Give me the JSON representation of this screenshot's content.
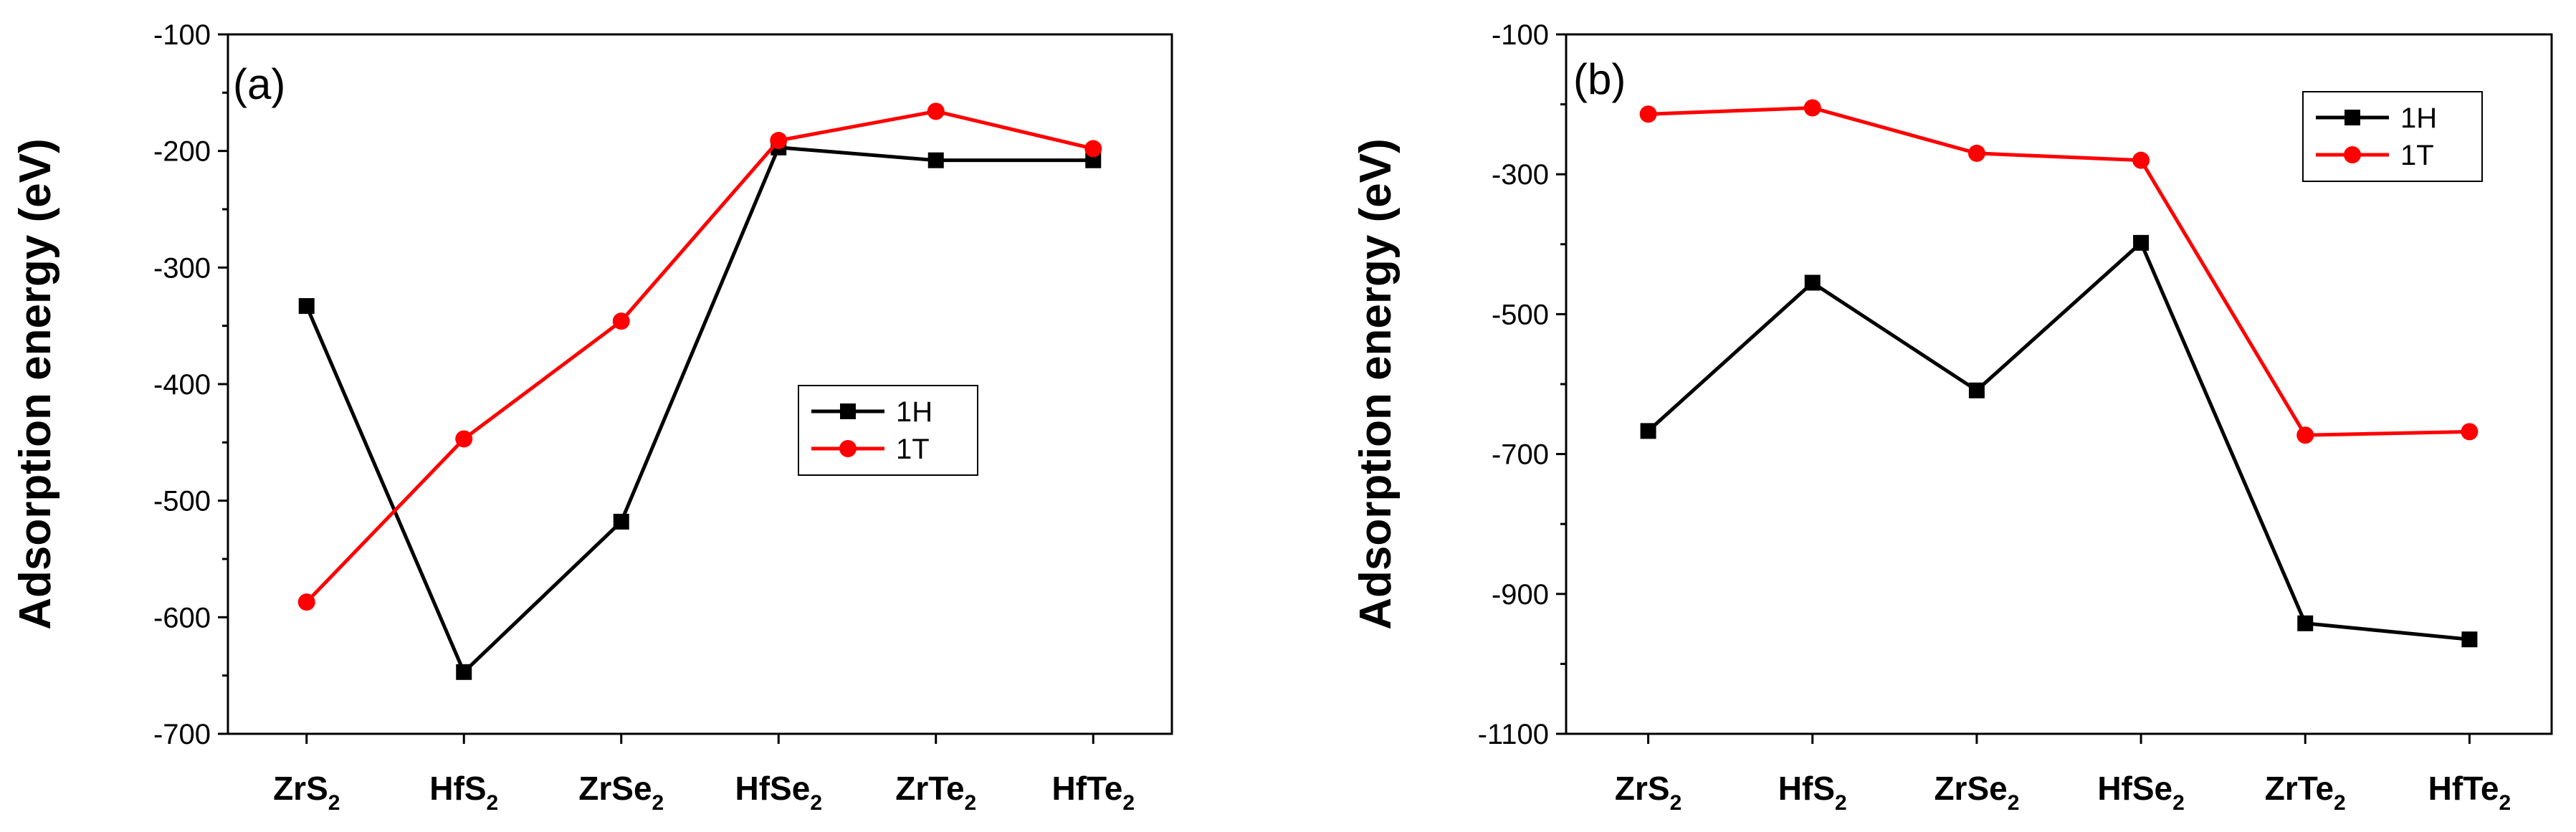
{
  "chart_data": [
    {
      "type": "line",
      "panel_label": "(a)",
      "ylabel": "Adsorption energy (eV)",
      "xlabel": "",
      "categories": [
        {
          "base": "ZrS",
          "sub": "2"
        },
        {
          "base": "HfS",
          "sub": "2"
        },
        {
          "base": "ZrSe",
          "sub": "2"
        },
        {
          "base": "HfSe",
          "sub": "2"
        },
        {
          "base": "ZrTe",
          "sub": "2"
        },
        {
          "base": "HfTe",
          "sub": "2"
        }
      ],
      "ylim": [
        -700,
        -100
      ],
      "yticks": [
        -100,
        -200,
        -300,
        -400,
        -500,
        -600,
        -700
      ],
      "ytick_labels": [
        "-100",
        "-200",
        "-300",
        "-400",
        "-500",
        "-600",
        "-700"
      ],
      "legend_position": "center-right",
      "series": [
        {
          "name": "1H",
          "color": "#000000",
          "marker": "square",
          "values": [
            -333,
            -647,
            -518,
            -197,
            -208,
            -208
          ]
        },
        {
          "name": "1T",
          "color": "#ff0000",
          "marker": "circle",
          "values": [
            -587,
            -447,
            -346,
            -191,
            -166,
            -198
          ]
        }
      ]
    },
    {
      "type": "line",
      "panel_label": "(b)",
      "ylabel": "Adsorption energy (eV)",
      "xlabel": "",
      "categories": [
        {
          "base": "ZrS",
          "sub": "2"
        },
        {
          "base": "HfS",
          "sub": "2"
        },
        {
          "base": "ZrSe",
          "sub": "2"
        },
        {
          "base": "HfSe",
          "sub": "2"
        },
        {
          "base": "ZrTe",
          "sub": "2"
        },
        {
          "base": "HfTe",
          "sub": "2"
        }
      ],
      "ylim": [
        -1100,
        -100
      ],
      "yticks": [
        -100,
        -300,
        -500,
        -700,
        -900,
        -1100
      ],
      "ytick_labels": [
        "-100",
        "-300",
        "-500",
        "-700",
        "-900",
        "-1100"
      ],
      "legend_position": "top-right",
      "series": [
        {
          "name": "1H",
          "color": "#000000",
          "marker": "square",
          "values": [
            -667,
            -455,
            -609,
            -398,
            -942,
            -965
          ]
        },
        {
          "name": "1T",
          "color": "#ff0000",
          "marker": "circle",
          "values": [
            -214,
            -205,
            -270,
            -280,
            -673,
            -668
          ]
        }
      ]
    }
  ]
}
